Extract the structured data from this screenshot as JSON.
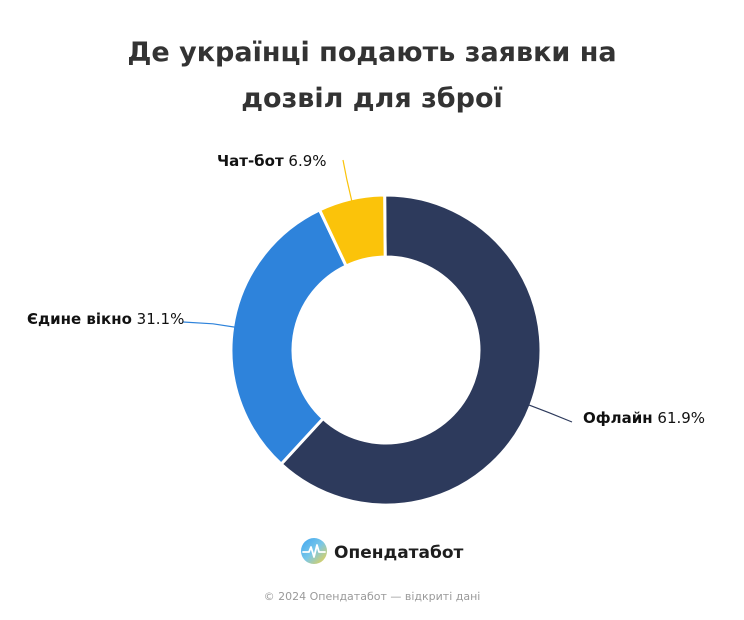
{
  "chart_data": {
    "type": "pie",
    "title_lines": [
      "Де українці подають заявки на",
      "дозвіл для зброї"
    ],
    "categories": [
      "Офлайн",
      "Єдине вікно",
      "Чат-бот"
    ],
    "values": [
      61.9,
      31.1,
      6.9
    ],
    "value_labels": [
      "61.9%",
      "31.1%",
      "6.9%"
    ],
    "colors": [
      "#2d3a5c",
      "#2e83db",
      "#fbc30a"
    ],
    "donut": true
  },
  "brand": {
    "name": "Опендатабот",
    "logo_icon": "opendatabot-logo-icon"
  },
  "footer": {
    "text": "© 2024 Опендатабот — відкриті дані"
  }
}
